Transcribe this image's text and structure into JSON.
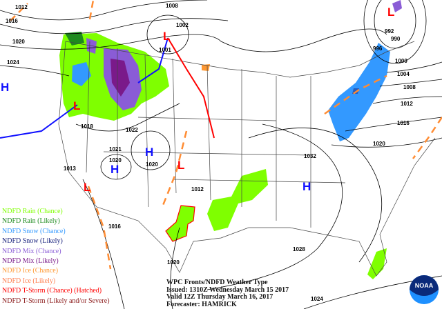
{
  "legend": [
    {
      "label": "NDFD Rain (Chance)",
      "color": "#7fff00"
    },
    {
      "label": "NDFD Rain (Likely)",
      "color": "#1e8b1e"
    },
    {
      "label": "NDFD Snow (Chance)",
      "color": "#3399ff"
    },
    {
      "label": "NDFD Snow (Likely)",
      "color": "#1a237e"
    },
    {
      "label": "NDFD Mix (Chance)",
      "color": "#8a5cd6"
    },
    {
      "label": "NDFD Mix (Likely)",
      "color": "#7a1a8a"
    },
    {
      "label": "NDFD Ice (Chance)",
      "color": "#ff9933"
    },
    {
      "label": "NDFD Ice (Likely)",
      "color": "#ff7f50"
    },
    {
      "label": "NDFD T-Storm (Chance) (Hatched)",
      "color": "#ff0000"
    },
    {
      "label": "NDFD T-Storm (Likely and/or Severe)",
      "color": "#8b1a1a"
    }
  ],
  "title_block": {
    "line1": "WPC Fronts/NDFD Weather Type",
    "line2": "Issued: 1310Z Wednesday March 15 2017",
    "line3": "Valid 12Z Thursday March 16, 2017",
    "line4": "Forecaster: HAMRICK"
  },
  "logo": "NOAA",
  "pressure_centers": [
    {
      "type": "H",
      "color": "#1010ff"
    },
    {
      "type": "H",
      "color": "#1010ff"
    },
    {
      "type": "H",
      "color": "#1010ff"
    },
    {
      "type": "H",
      "color": "#1010ff"
    },
    {
      "type": "L",
      "color": "#ff0000"
    },
    {
      "type": "L",
      "color": "#ff0000"
    },
    {
      "type": "L",
      "color": "#ff0000"
    },
    {
      "type": "L",
      "color": "#ff0000"
    },
    {
      "type": "L",
      "color": "#ff0000"
    }
  ],
  "isobar_labels": [
    "1012",
    "1016",
    "1020",
    "1024",
    "1008",
    "1002",
    "1001",
    "1018",
    "1022",
    "1021",
    "1020",
    "1020",
    "1013",
    "1012",
    "1016",
    "1020",
    "1032",
    "1028",
    "1024",
    "1020",
    "1016",
    "1012",
    "1008",
    "1004",
    "1000",
    "996",
    "990",
    "992"
  ]
}
